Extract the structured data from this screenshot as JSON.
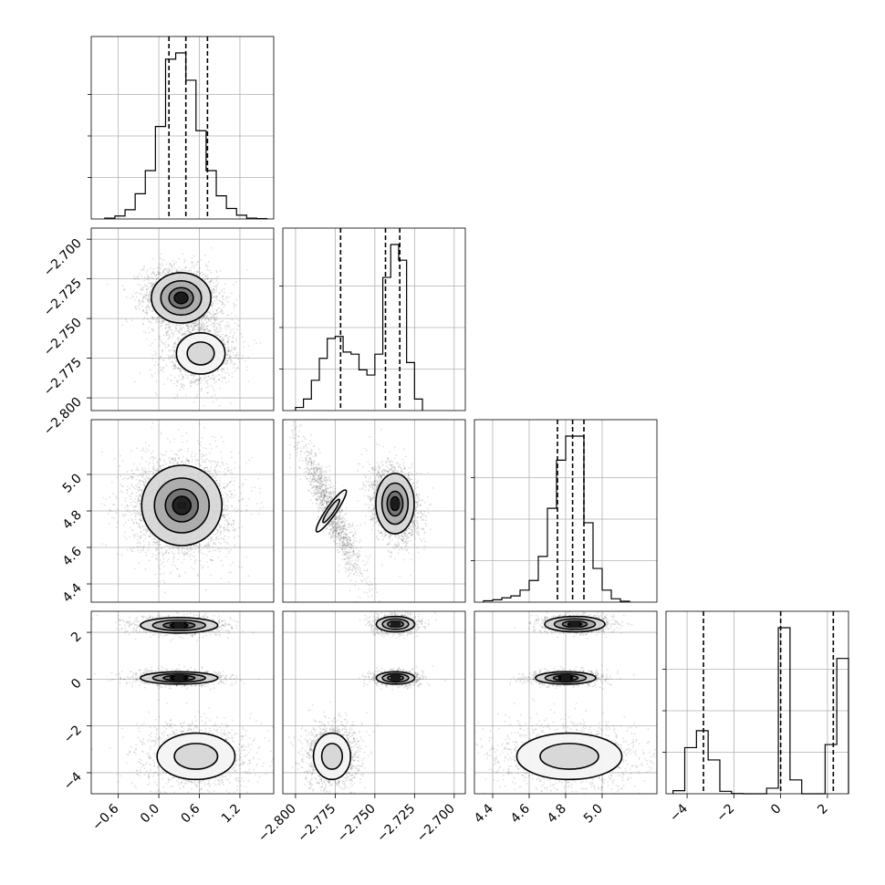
{
  "chart_data": {
    "type": "corner",
    "title": "",
    "grid": true,
    "legend": "none",
    "colors": {
      "line": "#000000",
      "grid": "#b0b0b0",
      "scatter": "#404040",
      "fill_levels": [
        "#f4f4f4",
        "#d6d6d6",
        "#a8a8a8",
        "#6e6e6e",
        "#1a1a1a"
      ]
    },
    "axes": [
      {
        "range": [
          -1.0,
          1.7
        ],
        "ticks": [
          -0.6,
          0.0,
          0.6,
          1.2
        ],
        "tick_labels": [
          "−0.6",
          "0.0",
          "0.6",
          "1.2"
        ],
        "quantiles": [
          0.15,
          0.4,
          0.72
        ],
        "histogram": {
          "bins": [
            -0.8,
            -0.65,
            -0.5,
            -0.35,
            -0.2,
            -0.05,
            0.1,
            0.25,
            0.4,
            0.55,
            0.7,
            0.85,
            1.0,
            1.15,
            1.3,
            1.45,
            1.6
          ],
          "counts": [
            2,
            7,
            22,
            60,
            115,
            220,
            380,
            395,
            330,
            210,
            115,
            55,
            25,
            9,
            2,
            1
          ]
        }
      },
      {
        "range": [
          -2.808,
          -2.693
        ],
        "ticks": [
          -2.8,
          -2.775,
          -2.75,
          -2.725,
          -2.7
        ],
        "tick_labels": [
          "−2.800",
          "−2.775",
          "−2.750",
          "−2.725",
          "−2.700"
        ],
        "quantiles": [
          -2.7716,
          -2.7433,
          -2.7343
        ],
        "histogram": {
          "bins": [
            -2.8,
            -2.795,
            -2.79,
            -2.785,
            -2.78,
            -2.775,
            -2.77,
            -2.765,
            -2.76,
            -2.755,
            -2.75,
            -2.745,
            -2.74,
            -2.735,
            -2.73,
            -2.725,
            -2.72
          ],
          "counts": [
            6,
            22,
            58,
            100,
            138,
            142,
            112,
            108,
            78,
            68,
            108,
            255,
            318,
            288,
            92,
            22
          ]
        }
      },
      {
        "range": [
          4.3,
          5.3
        ],
        "ticks": [
          4.4,
          4.6,
          4.8,
          5.0
        ],
        "tick_labels": [
          "4.4",
          "4.6",
          "4.8",
          "5.0"
        ],
        "quantiles": [
          4.755,
          4.838,
          4.9
        ],
        "histogram": {
          "bins": [
            4.35,
            4.4,
            4.45,
            4.5,
            4.55,
            4.6,
            4.65,
            4.7,
            4.75,
            4.8,
            4.85,
            4.9,
            4.95,
            5.0,
            5.05,
            5.1,
            5.15
          ],
          "counts": [
            3,
            5,
            9,
            13,
            25,
            45,
            95,
            195,
            295,
            345,
            345,
            165,
            70,
            25,
            7,
            2
          ]
        }
      },
      {
        "range": [
          -4.9,
          2.9
        ],
        "ticks": [
          -4,
          -2,
          0,
          2
        ],
        "tick_labels": [
          "−4",
          "−2",
          "0",
          "2"
        ],
        "quantiles": [
          -3.3,
          0.0,
          2.25
        ],
        "histogram": {
          "bins": [
            -4.6,
            -4.1,
            -3.6,
            -3.1,
            -2.6,
            -2.1,
            -1.6,
            -1.1,
            -0.6,
            -0.1,
            0.4,
            0.9,
            1.4,
            1.9,
            2.4,
            2.9
          ],
          "counts": [
            10,
            150,
            205,
            110,
            8,
            1,
            0,
            0,
            18,
            540,
            45,
            0,
            0,
            160,
            440
          ]
        }
      }
    ],
    "pairs": [
      {
        "x_axis": 0,
        "y_axis": 1,
        "modes": [
          {
            "cx": 0.33,
            "cy": -2.737,
            "sx": 0.2,
            "sy": 0.0072,
            "rho": -0.1,
            "n": 2600,
            "levels": true
          },
          {
            "cx": 0.62,
            "cy": -2.772,
            "sx": 0.2,
            "sy": 0.0072,
            "rho": 0.1,
            "n": 1400,
            "levels": false
          }
        ]
      },
      {
        "x_axis": 0,
        "y_axis": 2,
        "modes": [
          {
            "cx": 0.34,
            "cy": 4.83,
            "sx": 0.27,
            "sy": 0.1,
            "rho": 0.0,
            "n": 3800,
            "levels": true
          }
        ]
      },
      {
        "x_axis": 1,
        "y_axis": 2,
        "modes": [
          {
            "cx": -2.7373,
            "cy": 4.84,
            "sx": 0.0055,
            "sy": 0.075,
            "rho": -0.25,
            "n": 2400,
            "levels": true
          },
          {
            "cx": -2.7775,
            "cy": 4.8,
            "sx": 0.0075,
            "sy": 0.14,
            "rho": -0.92,
            "n": 1300,
            "levels": false
          }
        ]
      },
      {
        "x_axis": 0,
        "y_axis": 3,
        "modes": [
          {
            "cx": 0.3,
            "cy": 2.3,
            "sx": 0.26,
            "sy": 0.15,
            "rho": 0.0,
            "n": 1100,
            "levels": true
          },
          {
            "cx": 0.3,
            "cy": 0.05,
            "sx": 0.26,
            "sy": 0.12,
            "rho": 0.0,
            "n": 1200,
            "levels": true
          },
          {
            "cx": 0.55,
            "cy": -3.3,
            "sx": 0.32,
            "sy": 0.55,
            "rho": 0.0,
            "n": 1300,
            "levels": false
          }
        ]
      },
      {
        "x_axis": 1,
        "y_axis": 3,
        "modes": [
          {
            "cx": -2.737,
            "cy": 2.35,
            "sx": 0.0055,
            "sy": 0.15,
            "rho": 0.0,
            "n": 1000,
            "levels": true
          },
          {
            "cx": -2.737,
            "cy": 0.05,
            "sx": 0.0055,
            "sy": 0.12,
            "rho": 0.0,
            "n": 1000,
            "levels": true
          },
          {
            "cx": -2.777,
            "cy": -3.3,
            "sx": 0.0065,
            "sy": 0.55,
            "rho": 0.0,
            "n": 1400,
            "levels": false
          }
        ]
      },
      {
        "x_axis": 2,
        "y_axis": 3,
        "modes": [
          {
            "cx": 4.85,
            "cy": 2.35,
            "sx": 0.075,
            "sy": 0.15,
            "rho": 0.0,
            "n": 1000,
            "levels": true
          },
          {
            "cx": 4.8,
            "cy": 0.05,
            "sx": 0.075,
            "sy": 0.12,
            "rho": 0.0,
            "n": 1000,
            "levels": true
          },
          {
            "cx": 4.82,
            "cy": -3.3,
            "sx": 0.16,
            "sy": 0.55,
            "rho": 0.0,
            "n": 1400,
            "levels": false
          }
        ]
      }
    ]
  }
}
